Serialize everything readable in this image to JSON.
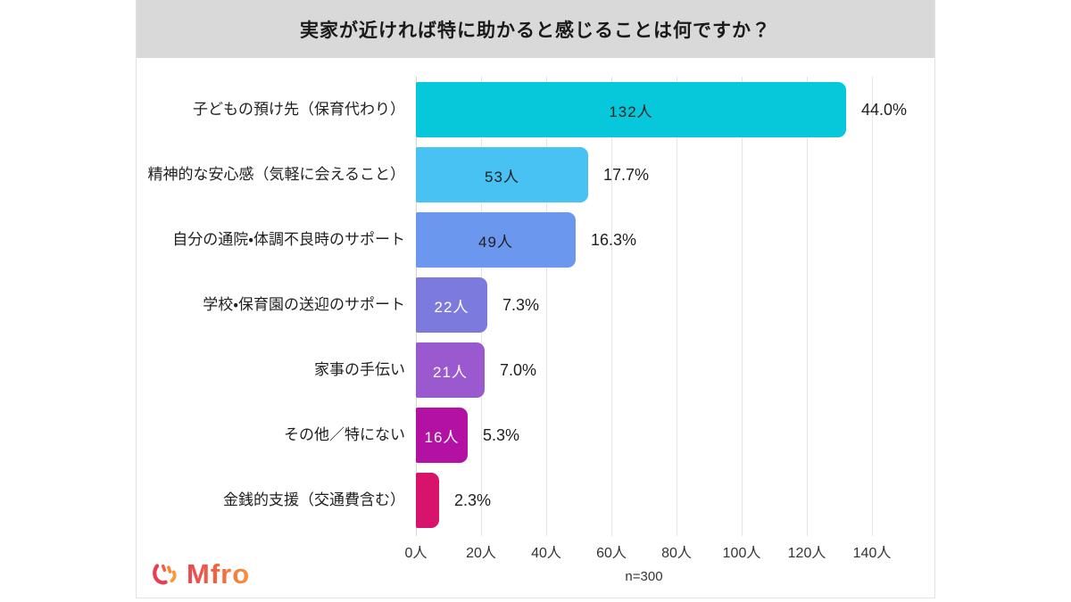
{
  "header": {
    "title": "実家が近ければ特に助かると感じることは何ですか？"
  },
  "chart_data": {
    "type": "bar",
    "orientation": "horizontal",
    "title": "実家が近ければ特に助かると感じることは何ですか？",
    "categories": [
      "子どもの預け先（保育代わり）",
      "精神的な安心感（気軽に会えること）",
      "自分の通院・体調不良時のサポート",
      "学校・保育園の送迎のサポート",
      "家事の手伝い",
      "その他／特にない",
      "金銭的支援（交通費含む）"
    ],
    "values": [
      132,
      53,
      49,
      22,
      21,
      16,
      7
    ],
    "count_labels": [
      "132人",
      "53人",
      "49人",
      "22人",
      "21人",
      "16人",
      ""
    ],
    "percent_labels": [
      "44.0%",
      "17.7%",
      "16.3%",
      "7.3%",
      "7.0%",
      "5.3%",
      "2.3%"
    ],
    "bar_colors": [
      "#06c8da",
      "#47c2f2",
      "#6b97ee",
      "#7d7ade",
      "#9b59d0",
      "#b211a3",
      "#d8136b"
    ],
    "count_label_colors": [
      "#222222",
      "#222222",
      "#222222",
      "#ffffff",
      "#ffffff",
      "#ffffff",
      ""
    ],
    "x_ticks": [
      "0人",
      "20人",
      "40人",
      "60人",
      "80人",
      "100人",
      "120人",
      "140人"
    ],
    "x_tick_values": [
      0,
      20,
      40,
      60,
      80,
      100,
      120,
      140
    ],
    "xlim": [
      0,
      140
    ],
    "grid": true,
    "legend": "none",
    "note": "n=300"
  },
  "footer": {
    "logo_text": "Mfro"
  },
  "colors": {
    "header_bg": "#d9d9d9",
    "card_bg": "#ffffff",
    "grid_line": "#e4e4e4",
    "logo_gradient_start": "#ee4455",
    "logo_gradient_end": "#f8923c"
  }
}
